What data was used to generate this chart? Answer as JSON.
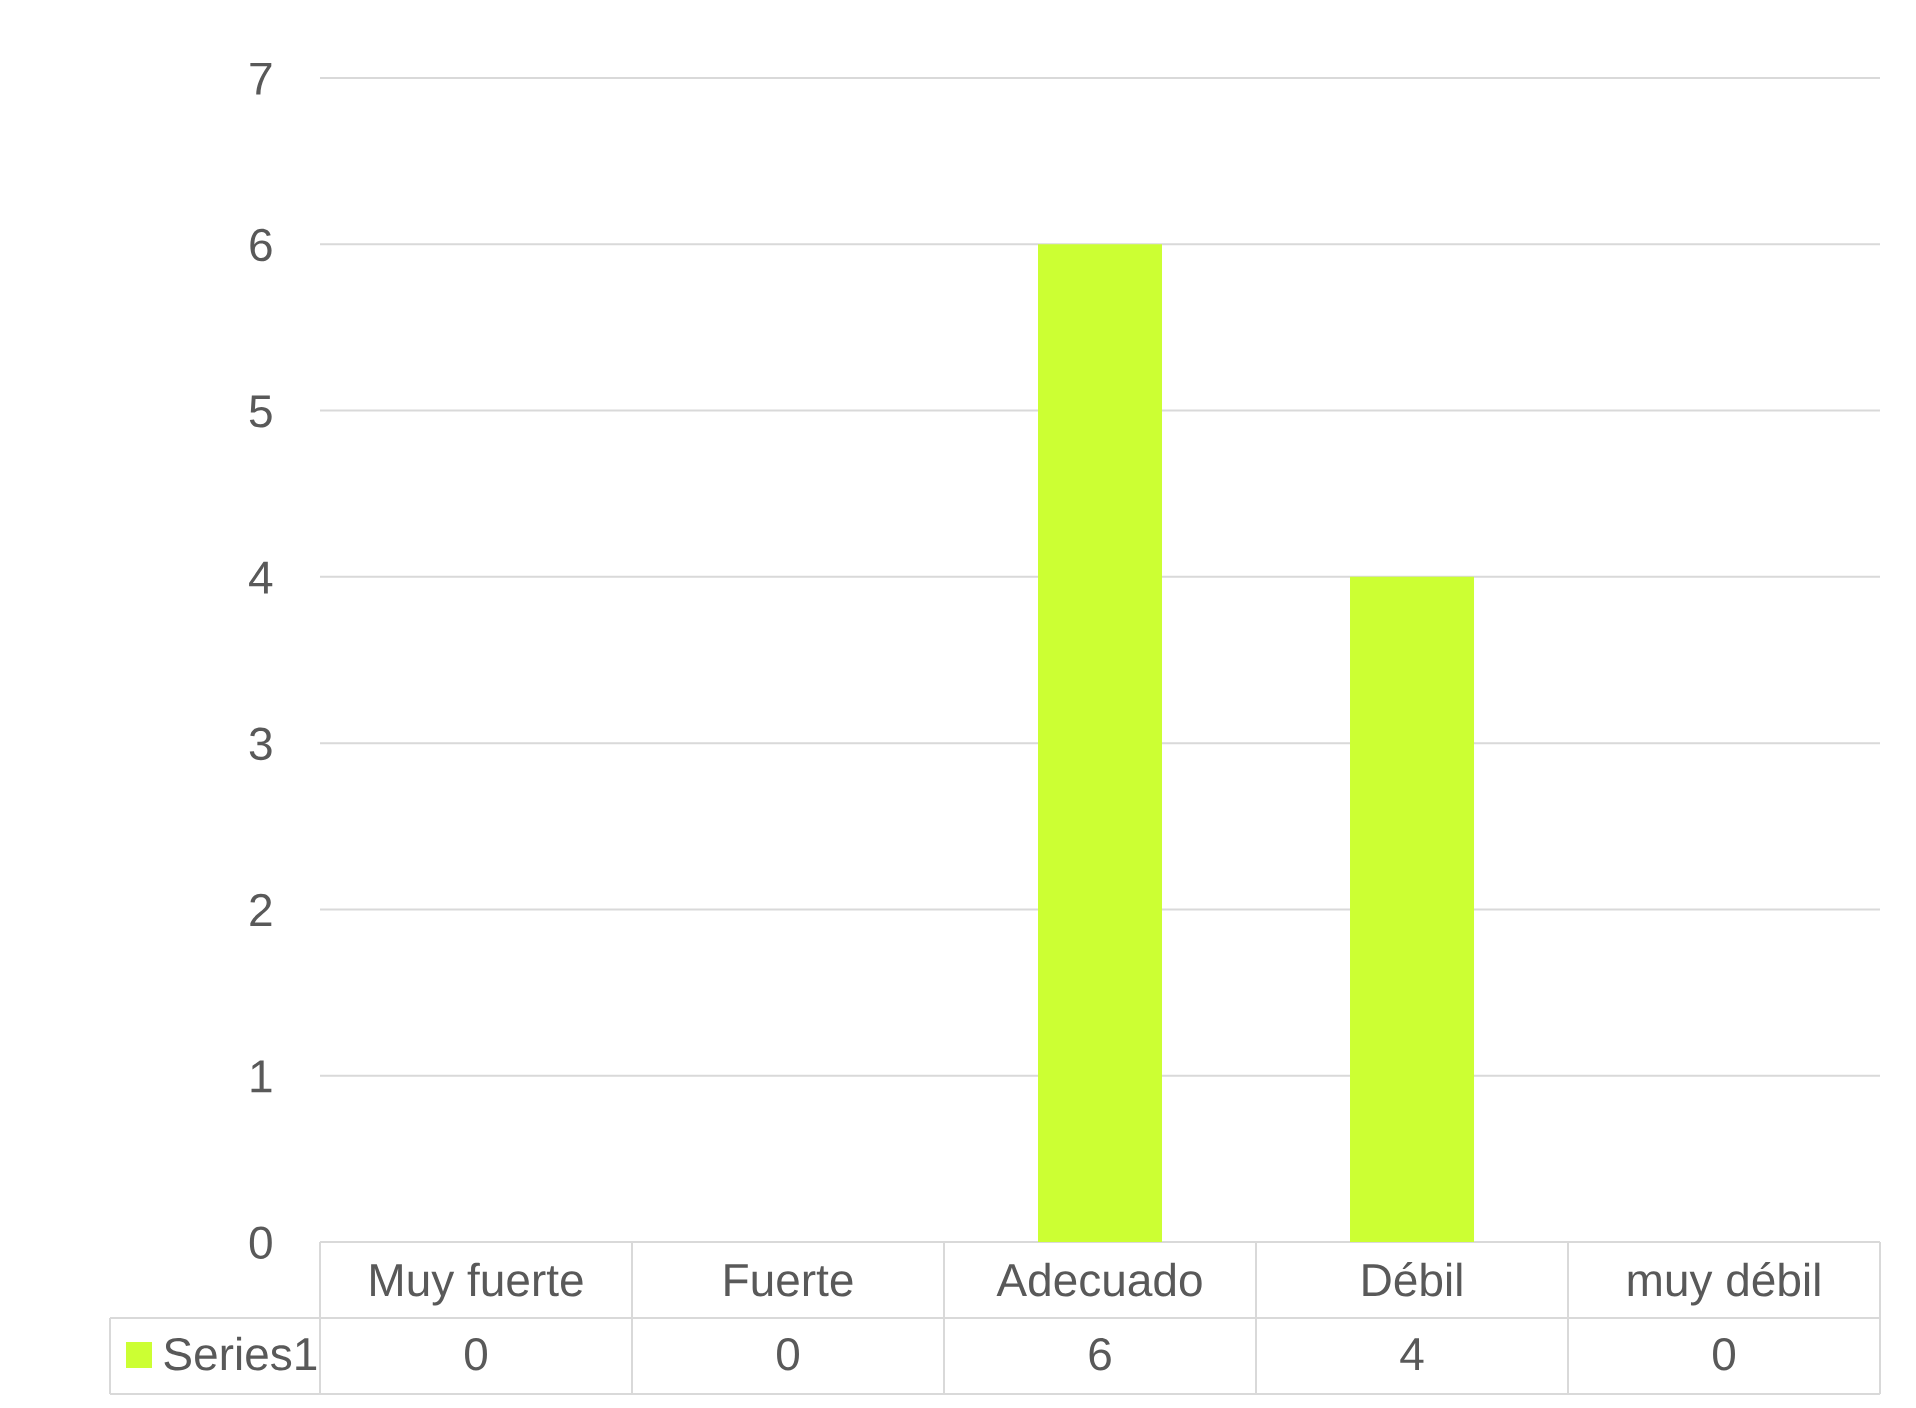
{
  "chart_data": {
    "type": "bar",
    "categories": [
      "Muy fuerte",
      "Fuerte",
      "Adecuado",
      "Débil",
      "muy débil"
    ],
    "series": [
      {
        "name": "Series1",
        "color": "#ccff33",
        "values": [
          0,
          0,
          6,
          4,
          0
        ]
      }
    ],
    "ylim": [
      0,
      7
    ],
    "yticks": [
      0,
      1,
      2,
      3,
      4,
      5,
      6,
      7
    ],
    "grid": "y",
    "legend": "bottom left",
    "data_labels": true
  }
}
